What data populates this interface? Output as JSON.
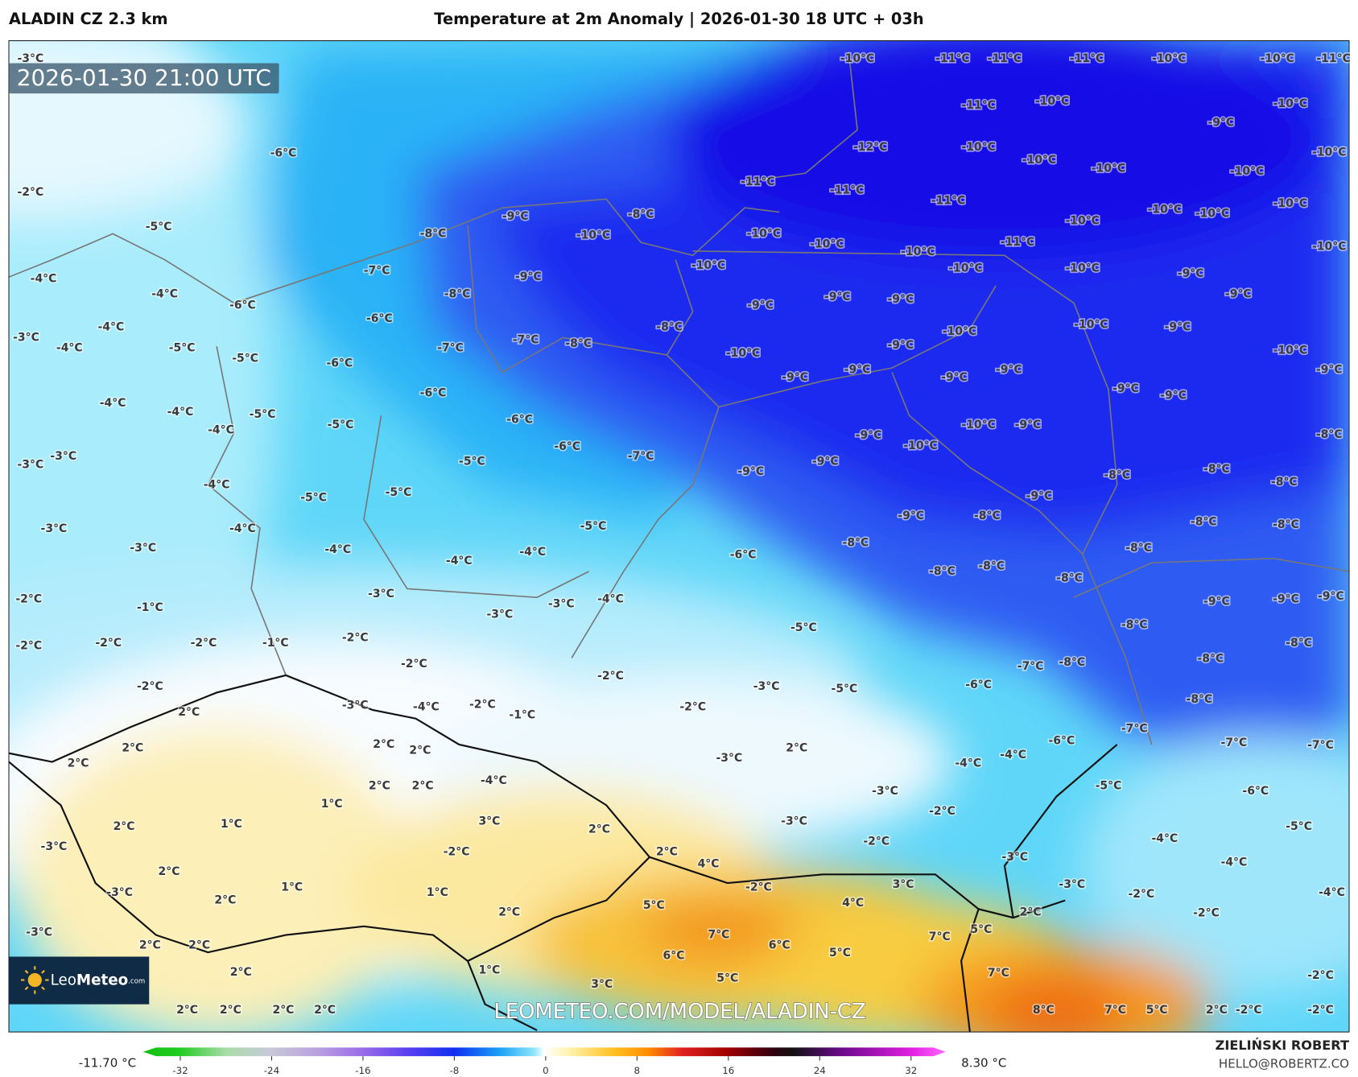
{
  "header": {
    "model": "ALADIN CZ 2.3 km",
    "title": "Temperature at 2m Anomaly | 2026-01-30 18 UTC + 03h"
  },
  "map": {
    "timestamp": "2026-01-30 21:00 UTC",
    "watermark": "LEOMETEO.COM/MODEL/ALADIN-CZ",
    "logo": {
      "light": "Leo",
      "bold": "Meteo",
      "suffix": ".com"
    },
    "labels": [
      "-3°C",
      "-10°C",
      "-11°C",
      "-11°C",
      "-11°C",
      "-10°C",
      "-10°C",
      "-11°C",
      "-11°C",
      "-10°C",
      "-10°C",
      "-9°C",
      "-6°C",
      "-12°C",
      "-10°C",
      "-10°C",
      "-10°C",
      "-10°C",
      "-10°C",
      "-2°C",
      "-11°C",
      "-11°C",
      "-11°C",
      "-10°C",
      "-10°C",
      "-10°C",
      "-10°C",
      "-9°C",
      "-8°C",
      "-5°C",
      "-8°C",
      "-10°C",
      "-10°C",
      "-11°C",
      "-10°C",
      "-10°C",
      "-10°C",
      "-10°C",
      "-10°C",
      "-10°C",
      "-9°C",
      "-7°C",
      "-9°C",
      "-4°C",
      "-8°C",
      "-4°C",
      "-9°C",
      "-9°C",
      "-9°C",
      "-9°C",
      "-6°C",
      "-6°C",
      "-8°C",
      "-10°C",
      "-10°C",
      "-9°C",
      "-4°C",
      "-3°C",
      "-4°C",
      "-5°C",
      "-5°C",
      "-6°C",
      "-7°C",
      "-7°C",
      "-8°C",
      "-10°C",
      "-9°C",
      "-10°C",
      "-9°C",
      "-9°C",
      "-9°C",
      "-9°C",
      "-9°C",
      "-9°C",
      "-9°C",
      "-6°C",
      "-4°C",
      "-4°C",
      "-5°C",
      "-5°C",
      "-6°C",
      "-4°C",
      "-9°C",
      "-10°C",
      "-9°C",
      "-10°C",
      "-8°C",
      "-3°C",
      "-3°C",
      "-5°C",
      "-6°C",
      "-7°C",
      "-9°C",
      "-9°C",
      "-8°C",
      "-8°C",
      "-8°C",
      "-4°C",
      "-5°C",
      "-5°C",
      "-9°C",
      "-3°C",
      "-4°C",
      "-5°C",
      "-9°C",
      "-8°C",
      "-8°C",
      "-8°C",
      "-3°C",
      "-4°C",
      "-4°C",
      "-4°C",
      "-6°C",
      "-8°C",
      "-8°C",
      "-2°C",
      "-1°C",
      "-3°C",
      "-3°C",
      "-4°C",
      "-3°C",
      "-8°C",
      "-8°C",
      "-8°C",
      "-9°C",
      "-9°C",
      "-9°C",
      "-2°C",
      "-2°C",
      "-2°C",
      "-1°C",
      "-2°C",
      "-5°C",
      "-8°C",
      "-8°C",
      "-2°C",
      "-2°C",
      "-7°C",
      "-8°C",
      "-8°C",
      "-2°C",
      "-3°C",
      "-5°C",
      "-6°C",
      "2°C",
      "-3°C",
      "-4°C",
      "-2°C",
      "-1°C",
      "-2°C",
      "-8°C",
      "2°C",
      "2°C",
      "2°C",
      "2°C",
      "-7°C",
      "-6°C",
      "-7°C",
      "-7°C",
      "2°C",
      "-3°C",
      "-4°C",
      "-4°C",
      "2°C",
      "2°C",
      "-4°C",
      "-3°C",
      "-5°C",
      "-6°C",
      "1°C",
      "2°C",
      "1°C",
      "3°C",
      "-3°C",
      "-2°C",
      "-5°C",
      "-3°C",
      "2°C",
      "-2°C",
      "2°C",
      "-2°C",
      "-4°C",
      "-3°C",
      "-4°C",
      "-3°C",
      "2°C",
      "1°C",
      "1°C",
      "4°C",
      "-2°C",
      "3°C",
      "-3°C",
      "-2°C",
      "-4°C",
      "2°C",
      "2°C",
      "5°C",
      "4°C",
      "2°C",
      "-2°C",
      "-3°C",
      "7°C",
      "6°C",
      "5°C",
      "7°C",
      "5°C",
      "2°C",
      "2°C",
      "6°C",
      "5°C",
      "7°C",
      "-2°C",
      "1°C",
      "2°C",
      "3°C",
      "2°C",
      "2°C",
      "2°C",
      "2°C",
      "8°C",
      "7°C",
      "5°C",
      "2°C",
      "-2°C",
      "-2°C"
    ]
  },
  "colorbar": {
    "min_label": "-11.70 °C",
    "max_label": "8.30 °C",
    "ticks": [
      -32,
      -24,
      -16,
      -8,
      0,
      8,
      16,
      24,
      32
    ]
  },
  "footer": {
    "author": "ZIELIŃSKI ROBERT",
    "email": "HELLO@ROBERTZ.CO"
  }
}
